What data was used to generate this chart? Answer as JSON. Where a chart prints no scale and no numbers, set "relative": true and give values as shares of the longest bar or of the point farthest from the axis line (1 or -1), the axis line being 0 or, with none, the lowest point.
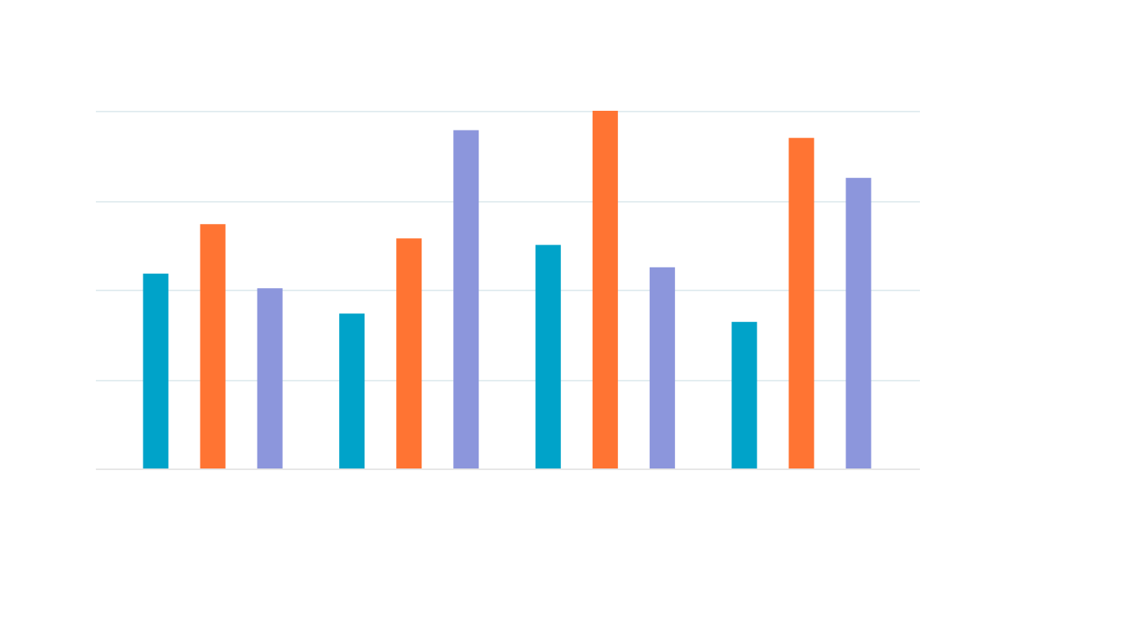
{
  "chart_data": {
    "type": "bar",
    "relative": true,
    "grid": "y",
    "legend": false,
    "categories": [
      null,
      null,
      null,
      null
    ],
    "series": [
      {
        "color": "#00a3c9",
        "values": [
          0.545,
          0.433,
          0.625,
          0.41
        ]
      },
      {
        "color": "#ff7433",
        "values": [
          0.683,
          0.643,
          1.0,
          0.924
        ]
      },
      {
        "color": "#8c96dc",
        "values": [
          0.504,
          0.946,
          0.5625,
          0.8125
        ]
      }
    ]
  }
}
